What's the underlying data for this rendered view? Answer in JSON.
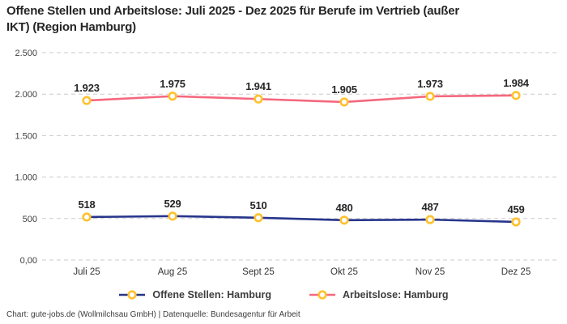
{
  "title": {
    "line1": "Offene Stellen und Arbeitslose: Juli 2025 - Dez 2025 für Berufe im Vertrieb (außer",
    "line2": "IKT) (Region Hamburg)"
  },
  "footer": {
    "credit": "Chart: gute-jobs.de (Wollmilchsau GmbH) | Datenquelle: Bundesagentur für Arbeit"
  },
  "colors": {
    "offene_stellen": "#27358C",
    "arbeitslose": "#F5687E",
    "marker_ring": "#FFC12E",
    "marker_fill": "#FFFFFF",
    "grid": "#CBCBCB",
    "title_text": "#262626",
    "tick_text": "#404040"
  },
  "chart_data": {
    "type": "line",
    "categories": [
      "Juli 25",
      "Aug 25",
      "Sept 25",
      "Okt 25",
      "Nov 25",
      "Dez 25"
    ],
    "series": [
      {
        "name": "Offene Stellen: Hamburg",
        "values": [
          518,
          529,
          510,
          480,
          487,
          459
        ],
        "labels": [
          "518",
          "529",
          "510",
          "480",
          "487",
          "459"
        ],
        "color": "#27358C"
      },
      {
        "name": "Arbeitslose: Hamburg",
        "values": [
          1923,
          1975,
          1941,
          1905,
          1973,
          1984
        ],
        "labels": [
          "1.923",
          "1.975",
          "1.941",
          "1.905",
          "1.973",
          "1.984"
        ],
        "color": "#F5687E"
      }
    ],
    "y_ticks": [
      "0,00",
      "500",
      "1.000",
      "1.500",
      "2.000",
      "2.500"
    ],
    "y_tick_values": [
      0,
      500,
      1000,
      1500,
      2000,
      2500
    ],
    "ylim": [
      0,
      2500
    ],
    "grid": "horizontal-dashed",
    "legend_position": "bottom",
    "marker": "gold-ring-circle",
    "value_labels_shown": true
  }
}
